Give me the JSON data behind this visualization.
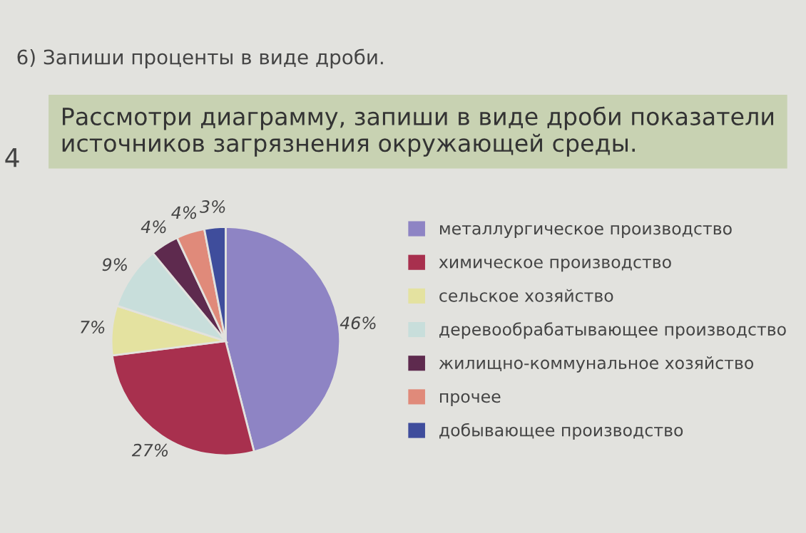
{
  "chart_data": {
    "type": "pie",
    "title": "Рассмотри диаграмму, запиши в виде дроби показатели источников загрязнения окружающей среды.",
    "annotations": [
      "6) Запиши проценты в виде дроби.",
      "4"
    ],
    "categories": [
      "металлургическое производство",
      "химическое производство",
      "сельское хозяйство",
      "деревообрабатывающее производство",
      "жилищно-коммунальное хозяйство",
      "прочее",
      "добывающее производство"
    ],
    "values": [
      46,
      27,
      7,
      9,
      4,
      4,
      3
    ],
    "value_labels": [
      "46%",
      "27%",
      "7%",
      "9%",
      "4%",
      "4%",
      "3%"
    ],
    "colors": [
      "#8e84c4",
      "#a8304e",
      "#e4e2a0",
      "#c8dedb",
      "#5e2a4e",
      "#e08a7a",
      "#3f4d9c"
    ],
    "legend": "right"
  }
}
